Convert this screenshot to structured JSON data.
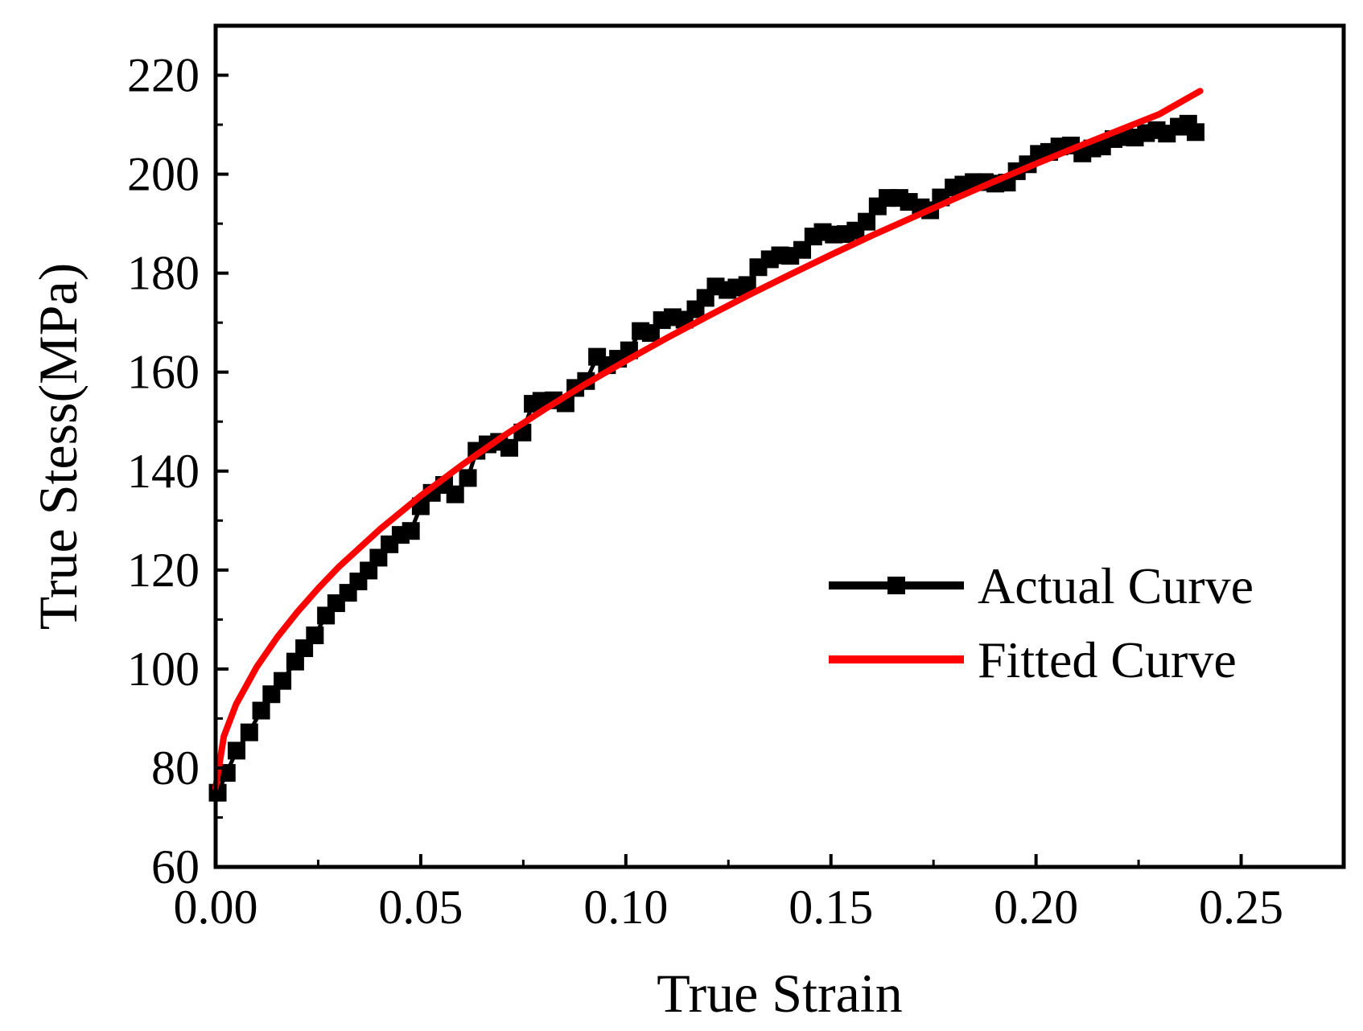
{
  "chart_data": {
    "type": "line",
    "title": "",
    "xlabel": "True Strain",
    "ylabel": "True Stess(MPa)",
    "xlim": [
      0.0,
      0.275
    ],
    "ylim": [
      60,
      230
    ],
    "xticks": [
      0.0,
      0.05,
      0.1,
      0.15,
      0.2,
      0.25
    ],
    "xtick_labels": [
      "0.00",
      "0.05",
      "0.10",
      "0.15",
      "0.20",
      "0.25"
    ],
    "yticks": [
      60,
      80,
      100,
      120,
      140,
      160,
      180,
      200,
      220
    ],
    "ytick_labels": [
      "60",
      "80",
      "100",
      "120",
      "140",
      "160",
      "180",
      "200",
      "220"
    ],
    "grid": false,
    "legend_position": "center-right",
    "series": [
      {
        "name": "Actual Curve",
        "color": "#000000",
        "marker": "square",
        "x": [
          0.0005,
          0.0027,
          0.0051,
          0.0082,
          0.0111,
          0.0136,
          0.0163,
          0.0194,
          0.0216,
          0.0242,
          0.0269,
          0.0294,
          0.0323,
          0.0348,
          0.0373,
          0.0397,
          0.0424,
          0.0451,
          0.0476,
          0.05,
          0.0527,
          0.0557,
          0.0584,
          0.0615,
          0.0636,
          0.0663,
          0.0691,
          0.0716,
          0.0748,
          0.0773,
          0.0794,
          0.0824,
          0.0853,
          0.0877,
          0.0903,
          0.093,
          0.0954,
          0.0981,
          0.1008,
          0.1036,
          0.1061,
          0.1088,
          0.1114,
          0.1143,
          0.117,
          0.1194,
          0.1219,
          0.1248,
          0.127,
          0.1296,
          0.1323,
          0.1351,
          0.1376,
          0.1401,
          0.143,
          0.1457,
          0.148,
          0.1507,
          0.1536,
          0.156,
          0.1587,
          0.1614,
          0.1638,
          0.1667,
          0.169,
          0.1719,
          0.1742,
          0.1768,
          0.1799,
          0.1823,
          0.1848,
          0.1875,
          0.1901,
          0.1929,
          0.1953,
          0.198,
          0.2007,
          0.2032,
          0.2057,
          0.2085,
          0.2113,
          0.2137,
          0.2161,
          0.2189,
          0.2215,
          0.2241,
          0.2268,
          0.2294,
          0.2319,
          0.2348,
          0.2371,
          0.2389
        ],
        "y": [
          75,
          79,
          83.5,
          87.2,
          91.6,
          94.9,
          97.6,
          101.5,
          104.2,
          106.8,
          110.8,
          113.3,
          115.4,
          117.7,
          119.9,
          122.5,
          125.2,
          127.1,
          127.9,
          132.9,
          135.6,
          137.2,
          135.3,
          138.6,
          144.1,
          145.4,
          145.9,
          144.7,
          147.8,
          153.6,
          154.2,
          154.3,
          153.7,
          156.8,
          158.2,
          163.1,
          161.4,
          162.7,
          164.4,
          168.3,
          167.9,
          170.5,
          171.1,
          170.6,
          172.7,
          175,
          177.3,
          176.6,
          177.1,
          177.6,
          181.2,
          182.8,
          183.6,
          183.5,
          184.7,
          187.4,
          188.3,
          187.8,
          187.9,
          188.6,
          190.4,
          193.5,
          195.2,
          195.2,
          194.4,
          193.3,
          192.7,
          195.3,
          197.3,
          197.9,
          198.4,
          198.4,
          198.1,
          198.3,
          200.6,
          202,
          204.1,
          204.5,
          205.6,
          205.8,
          204.2,
          205.2,
          205.6,
          207.1,
          207.5,
          207.4,
          208.3,
          208.9,
          208.2,
          209.6,
          210.2,
          208.5
        ]
      },
      {
        "name": "Fitted Curve",
        "color": "#ff0000",
        "marker": "none",
        "x": [
          0.0,
          0.002,
          0.005,
          0.01,
          0.015,
          0.02,
          0.025,
          0.03,
          0.04,
          0.05,
          0.06,
          0.07,
          0.08,
          0.09,
          0.1,
          0.11,
          0.12,
          0.13,
          0.14,
          0.15,
          0.16,
          0.17,
          0.18,
          0.19,
          0.2,
          0.21,
          0.22,
          0.23,
          0.24
        ],
        "y": [
          76,
          86.4,
          92.9,
          100.4,
          106.4,
          111.6,
          116.3,
          120.6,
          128.2,
          135,
          141.2,
          147,
          152.4,
          157.5,
          162.3,
          166.9,
          171.3,
          175.6,
          179.7,
          183.7,
          187.6,
          191.3,
          195,
          198.6,
          202.1,
          205.5,
          208.8,
          212.1,
          216.8
        ]
      }
    ]
  }
}
